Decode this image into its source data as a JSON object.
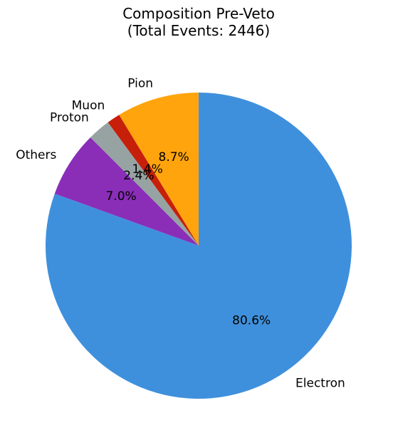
{
  "chart_data": {
    "type": "pie",
    "title_lines": [
      "Composition Pre-Veto",
      "(Total Events: 2446)"
    ],
    "start_angle_deg": 135,
    "counterclockwise": true,
    "slices": [
      {
        "label": "Others",
        "value": 7.0,
        "pct_label": "7.0%",
        "color": "#8a2eb8"
      },
      {
        "label": "Electron",
        "value": 80.6,
        "pct_label": "80.6%",
        "color": "#3f90dc"
      },
      {
        "label": "Pion",
        "value": 8.7,
        "pct_label": "8.7%",
        "color": "#ffa40d"
      },
      {
        "label": "Muon",
        "value": 1.4,
        "pct_label": "1.4%",
        "color": "#c61f0a"
      },
      {
        "label": "Proton",
        "value": 2.4,
        "pct_label": "2.4%",
        "color": "#97a3a3"
      }
    ]
  }
}
